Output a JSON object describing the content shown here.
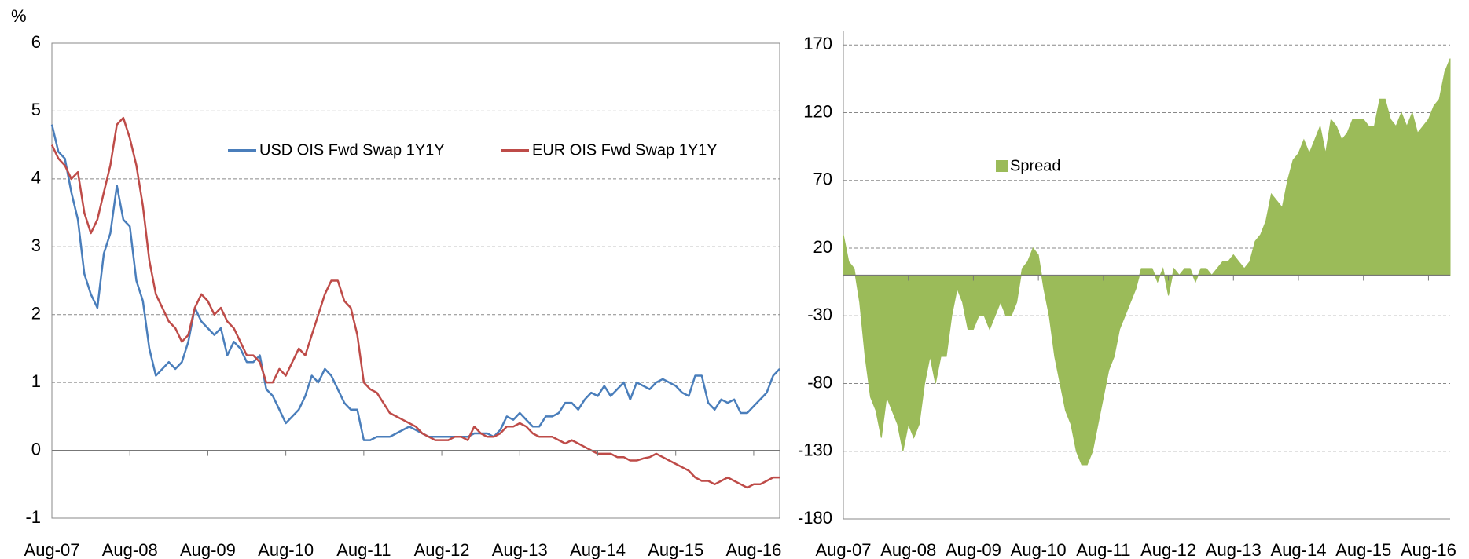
{
  "chart_data": [
    {
      "type": "line",
      "ylabel": "%",
      "categories": [
        "Aug-07",
        null,
        null,
        null,
        null,
        null,
        null,
        null,
        null,
        null,
        null,
        null,
        "Aug-08",
        null,
        null,
        null,
        null,
        null,
        null,
        null,
        null,
        null,
        null,
        null,
        "Aug-09",
        null,
        null,
        null,
        null,
        null,
        null,
        null,
        null,
        null,
        null,
        null,
        "Aug-10",
        null,
        null,
        null,
        null,
        null,
        null,
        null,
        null,
        null,
        null,
        null,
        "Aug-11",
        null,
        null,
        null,
        null,
        null,
        null,
        null,
        null,
        null,
        null,
        null,
        "Aug-12",
        null,
        null,
        null,
        null,
        null,
        null,
        null,
        null,
        null,
        null,
        null,
        "Aug-13",
        null,
        null,
        null,
        null,
        null,
        null,
        null,
        null,
        null,
        null,
        null,
        "Aug-14",
        null,
        null,
        null,
        null,
        null,
        null,
        null,
        null,
        null,
        null,
        null,
        "Aug-15",
        null,
        null,
        null,
        null,
        null,
        null,
        null,
        null,
        null,
        null,
        null,
        "Aug-16",
        null,
        null,
        null,
        null
      ],
      "series": [
        {
          "name": "USD OIS Fwd Swap 1Y1Y",
          "color": "#4a7ebb",
          "values": [
            4.8,
            4.4,
            4.3,
            3.8,
            3.4,
            2.6,
            2.3,
            2.1,
            2.9,
            3.2,
            3.9,
            3.4,
            3.3,
            2.5,
            2.2,
            1.5,
            1.1,
            1.2,
            1.3,
            1.2,
            1.3,
            1.6,
            2.1,
            1.9,
            1.8,
            1.7,
            1.8,
            1.4,
            1.6,
            1.5,
            1.3,
            1.3,
            1.4,
            0.9,
            0.8,
            0.6,
            0.4,
            0.5,
            0.6,
            0.8,
            1.1,
            1.0,
            1.2,
            1.1,
            0.9,
            0.7,
            0.6,
            0.6,
            0.15,
            0.15,
            0.2,
            0.2,
            0.2,
            0.25,
            0.3,
            0.35,
            0.3,
            0.25,
            0.2,
            0.2,
            0.2,
            0.2,
            0.2,
            0.2,
            0.2,
            0.25,
            0.25,
            0.25,
            0.2,
            0.3,
            0.5,
            0.45,
            0.55,
            0.45,
            0.35,
            0.35,
            0.5,
            0.5,
            0.55,
            0.7,
            0.7,
            0.6,
            0.75,
            0.85,
            0.8,
            0.95,
            0.8,
            0.9,
            1.0,
            0.75,
            1.0,
            0.95,
            0.9,
            1.0,
            1.05,
            1.0,
            0.95,
            0.85,
            0.8,
            1.1,
            1.1,
            0.7,
            0.6,
            0.75,
            0.7,
            0.75,
            0.55,
            0.55,
            0.65,
            0.75,
            0.85,
            1.1,
            1.2
          ]
        },
        {
          "name": "EUR OIS Fwd Swap 1Y1Y",
          "color": "#be4b48",
          "values": [
            4.5,
            4.3,
            4.2,
            4.0,
            4.1,
            3.5,
            3.2,
            3.4,
            3.8,
            4.2,
            4.8,
            4.9,
            4.6,
            4.2,
            3.6,
            2.8,
            2.3,
            2.1,
            1.9,
            1.8,
            1.6,
            1.7,
            2.1,
            2.3,
            2.2,
            2.0,
            2.1,
            1.9,
            1.8,
            1.6,
            1.4,
            1.4,
            1.3,
            1.0,
            1.0,
            1.2,
            1.1,
            1.3,
            1.5,
            1.4,
            1.7,
            2.0,
            2.3,
            2.5,
            2.5,
            2.2,
            2.1,
            1.7,
            1.0,
            0.9,
            0.85,
            0.7,
            0.55,
            0.5,
            0.45,
            0.4,
            0.35,
            0.25,
            0.2,
            0.15,
            0.15,
            0.15,
            0.2,
            0.2,
            0.15,
            0.35,
            0.25,
            0.2,
            0.2,
            0.25,
            0.35,
            0.35,
            0.4,
            0.35,
            0.25,
            0.2,
            0.2,
            0.2,
            0.15,
            0.1,
            0.15,
            0.1,
            0.05,
            0.0,
            -0.05,
            -0.05,
            -0.05,
            -0.1,
            -0.1,
            -0.15,
            -0.15,
            -0.12,
            -0.1,
            -0.05,
            -0.1,
            -0.15,
            -0.2,
            -0.25,
            -0.3,
            -0.4,
            -0.45,
            -0.45,
            -0.5,
            -0.45,
            -0.4,
            -0.45,
            -0.5,
            -0.55,
            -0.5,
            -0.5,
            -0.45,
            -0.4,
            -0.4
          ]
        }
      ],
      "ylim": [
        -1,
        6
      ],
      "yticks": [
        -1,
        0,
        1,
        2,
        3,
        4,
        5,
        6
      ],
      "grid": true,
      "legend": "top"
    },
    {
      "type": "area",
      "categories": [
        "Aug-07",
        null,
        null,
        null,
        null,
        null,
        null,
        null,
        null,
        null,
        null,
        null,
        "Aug-08",
        null,
        null,
        null,
        null,
        null,
        null,
        null,
        null,
        null,
        null,
        null,
        "Aug-09",
        null,
        null,
        null,
        null,
        null,
        null,
        null,
        null,
        null,
        null,
        null,
        "Aug-10",
        null,
        null,
        null,
        null,
        null,
        null,
        null,
        null,
        null,
        null,
        null,
        "Aug-11",
        null,
        null,
        null,
        null,
        null,
        null,
        null,
        null,
        null,
        null,
        null,
        "Aug-12",
        null,
        null,
        null,
        null,
        null,
        null,
        null,
        null,
        null,
        null,
        null,
        "Aug-13",
        null,
        null,
        null,
        null,
        null,
        null,
        null,
        null,
        null,
        null,
        null,
        "Aug-14",
        null,
        null,
        null,
        null,
        null,
        null,
        null,
        null,
        null,
        null,
        null,
        "Aug-15",
        null,
        null,
        null,
        null,
        null,
        null,
        null,
        null,
        null,
        null,
        null,
        "Aug-16",
        null,
        null,
        null,
        null
      ],
      "series": [
        {
          "name": "Spread",
          "color": "#9bbb59",
          "values": [
            30,
            10,
            5,
            -20,
            -60,
            -90,
            -100,
            -120,
            -90,
            -100,
            -110,
            -130,
            -110,
            -120,
            -110,
            -80,
            -60,
            -80,
            -60,
            -60,
            -30,
            -10,
            -20,
            -40,
            -40,
            -30,
            -30,
            -40,
            -30,
            -20,
            -30,
            -30,
            -20,
            5,
            10,
            20,
            15,
            -10,
            -30,
            -60,
            -80,
            -100,
            -110,
            -130,
            -140,
            -140,
            -130,
            -110,
            -90,
            -70,
            -60,
            -40,
            -30,
            -20,
            -10,
            5,
            5,
            5,
            -5,
            5,
            -15,
            5,
            0,
            5,
            5,
            -5,
            5,
            5,
            0,
            5,
            10,
            10,
            15,
            10,
            5,
            10,
            25,
            30,
            40,
            60,
            55,
            50,
            70,
            85,
            90,
            100,
            90,
            100,
            110,
            90,
            115,
            110,
            100,
            105,
            115,
            115,
            115,
            110,
            110,
            130,
            130,
            115,
            110,
            120,
            110,
            120,
            105,
            110,
            115,
            125,
            130,
            150,
            160
          ]
        }
      ],
      "ylim": [
        -180,
        180
      ],
      "yticks": [
        -180,
        -130,
        -80,
        -30,
        20,
        70,
        120,
        170
      ],
      "grid": true,
      "legend": "top"
    }
  ]
}
